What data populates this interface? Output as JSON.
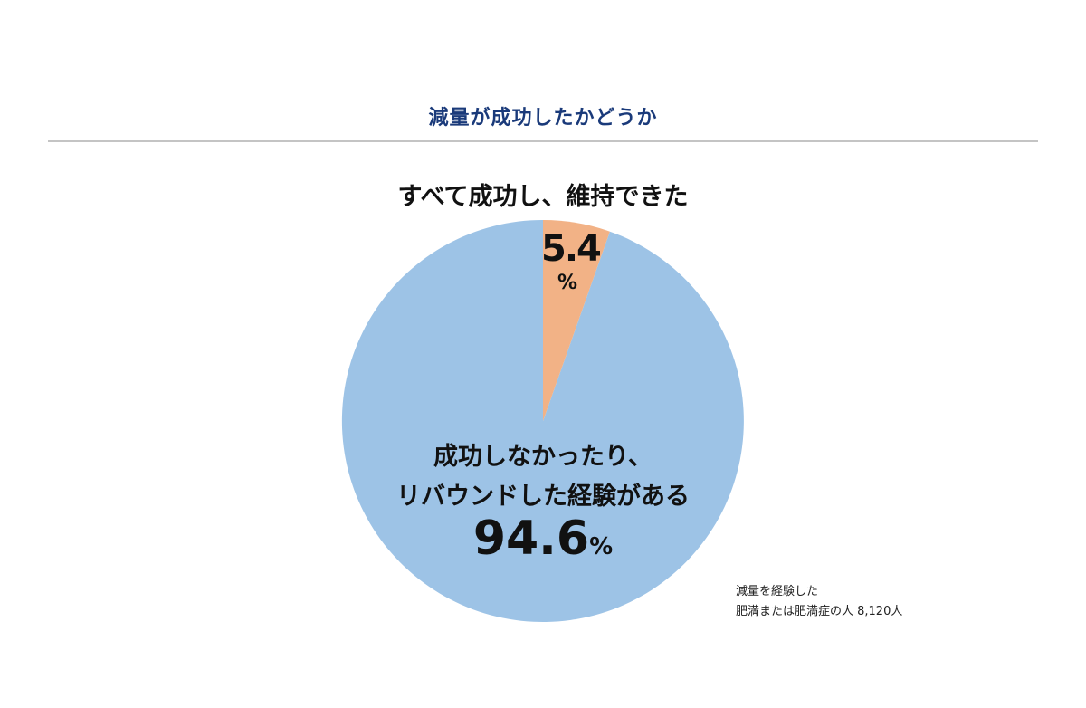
{
  "title": "減量が成功したかどうか",
  "colors": {
    "title": "#1a3a7a",
    "rule": "#c4c4c4",
    "success_slice": "#f2b286",
    "fail_slice": "#9dc3e6"
  },
  "labels": {
    "success_label": "すべて成功し、維持できた",
    "success_value": "5.4",
    "success_unit": "%",
    "fail_label_line1": "成功しなかったり、",
    "fail_label_line2": "リバウンドした経験がある",
    "fail_value": "94.6",
    "fail_unit": "%"
  },
  "note": {
    "line1": "減量を経験した",
    "line2": "肥満または肥満症の人 8,120人"
  },
  "chart_data": {
    "type": "pie",
    "title": "減量が成功したかどうか",
    "categories": [
      "すべて成功し、維持できた",
      "成功しなかったり、リバウンドした経験がある"
    ],
    "values": [
      5.4,
      94.6
    ],
    "unit": "%",
    "colors": [
      "#f2b286",
      "#9dc3e6"
    ],
    "start_angle_deg": 0,
    "direction": "clockwise",
    "annotation": "減量を経験した 肥満または肥満症の人 8,120人",
    "legend": "none (direct labels)"
  }
}
